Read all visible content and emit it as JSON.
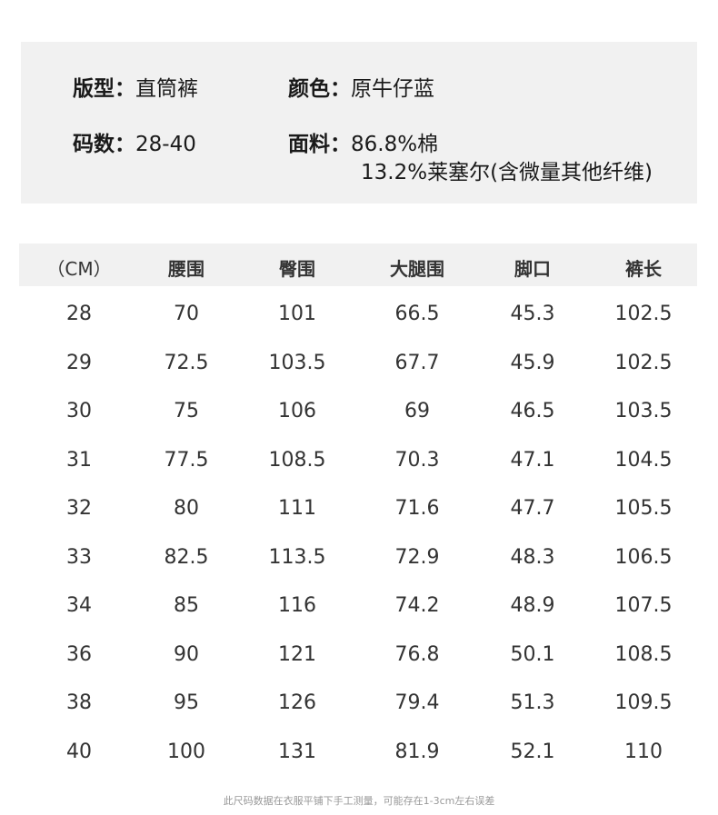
{
  "info": {
    "style_label": "版型：",
    "style_value": "直筒裤",
    "color_label": "颜色：",
    "color_value": "原牛仔蓝",
    "size_label": "码数：",
    "size_value": "28-40",
    "fabric_label": "面料：",
    "fabric_line1": "86.8%棉",
    "fabric_line2": "13.2%莱塞尔(含微量其他纤维)"
  },
  "table": {
    "headers": [
      "（CM）",
      "腰围",
      "臀围",
      "大腿围",
      "脚口",
      "裤长"
    ],
    "rows": [
      [
        "28",
        "70",
        "101",
        "66.5",
        "45.3",
        "102.5"
      ],
      [
        "29",
        "72.5",
        "103.5",
        "67.7",
        "45.9",
        "102.5"
      ],
      [
        "30",
        "75",
        "106",
        "69",
        "46.5",
        "103.5"
      ],
      [
        "31",
        "77.5",
        "108.5",
        "70.3",
        "47.1",
        "104.5"
      ],
      [
        "32",
        "80",
        "111",
        "71.6",
        "47.7",
        "105.5"
      ],
      [
        "33",
        "82.5",
        "113.5",
        "72.9",
        "48.3",
        "106.5"
      ],
      [
        "34",
        "85",
        "116",
        "74.2",
        "48.9",
        "107.5"
      ],
      [
        "36",
        "90",
        "121",
        "76.8",
        "50.1",
        "108.5"
      ],
      [
        "38",
        "95",
        "126",
        "79.4",
        "51.3",
        "109.5"
      ],
      [
        "40",
        "100",
        "131",
        "81.9",
        "52.1",
        "110"
      ]
    ]
  },
  "note": "此尺码数据在衣服平铺下手工测量，可能存在1-3cm左右误差"
}
